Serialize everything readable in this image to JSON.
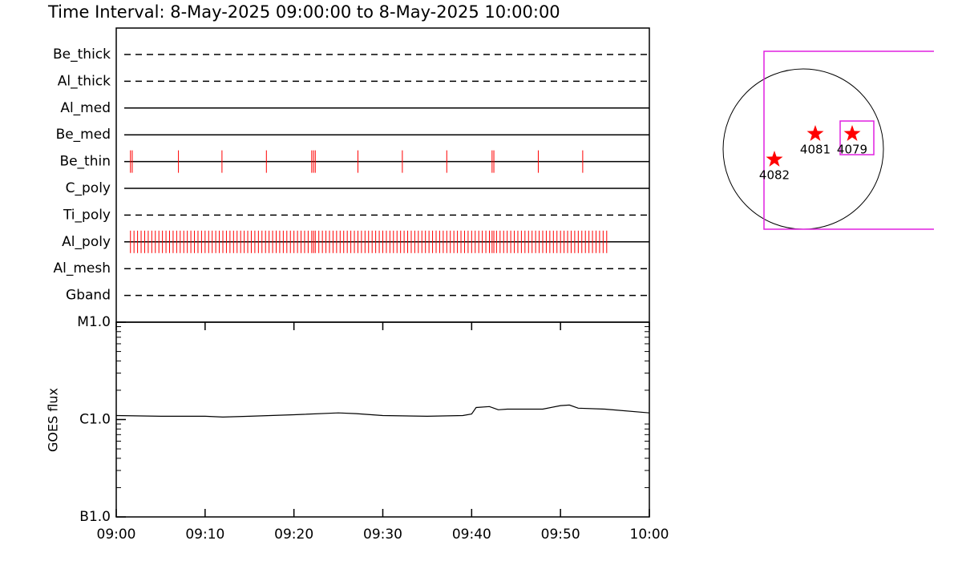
{
  "chart_data": [
    {
      "type": "timeline",
      "title": "Time Interval:  8-May-2025 09:00:00 to  8-May-2025 10:00:00",
      "categories": [
        "Be_thick",
        "Al_thick",
        "Al_med",
        "Be_med",
        "Be_thin",
        "C_poly",
        "Ti_poly",
        "Al_poly",
        "Al_mesh",
        "Gband"
      ],
      "line_styles": [
        "dashed",
        "dashed",
        "solid",
        "solid",
        "solid",
        "solid",
        "dashed",
        "solid",
        "dashed",
        "dashed"
      ],
      "color": "#ff0000",
      "xlim": [
        0,
        60
      ],
      "events": [
        [],
        [],
        [],
        [],
        [
          1.6,
          1.8,
          7.0,
          11.9,
          16.9,
          22.0,
          22.2,
          22.4,
          27.2,
          32.2,
          37.2,
          42.3,
          42.5,
          47.5,
          52.5
        ],
        [],
        [],
        [
          1.6,
          2.0,
          2.4,
          2.8,
          3.2,
          3.6,
          4.0,
          4.4,
          4.8,
          5.2,
          5.6,
          6.0,
          6.4,
          6.8,
          7.2,
          7.6,
          8.0,
          8.4,
          8.8,
          9.2,
          9.6,
          10.0,
          10.4,
          10.8,
          11.2,
          11.6,
          12.0,
          12.4,
          12.8,
          13.2,
          13.6,
          14.0,
          14.4,
          14.8,
          15.2,
          15.6,
          16.0,
          16.4,
          16.8,
          17.2,
          17.6,
          18.0,
          18.4,
          18.8,
          19.2,
          19.6,
          20.0,
          20.4,
          20.8,
          21.2,
          21.6,
          22.0,
          22.2,
          22.4,
          22.8,
          23.2,
          23.6,
          24.0,
          24.4,
          24.8,
          25.2,
          25.6,
          26.0,
          26.4,
          26.8,
          27.2,
          27.6,
          28.0,
          28.4,
          28.8,
          29.2,
          29.6,
          30.0,
          30.4,
          30.8,
          31.2,
          31.6,
          32.0,
          32.4,
          32.8,
          33.2,
          33.6,
          34.0,
          34.4,
          34.8,
          35.2,
          35.6,
          36.0,
          36.4,
          36.8,
          37.2,
          37.6,
          38.0,
          38.4,
          38.8,
          39.2,
          39.6,
          40.0,
          40.4,
          40.8,
          41.2,
          41.6,
          42.0,
          42.3,
          42.5,
          42.8,
          43.2,
          43.6,
          44.0,
          44.4,
          44.8,
          45.2,
          45.6,
          46.0,
          46.4,
          46.8,
          47.2,
          47.6,
          48.0,
          48.4,
          48.8,
          49.2,
          49.6,
          50.0,
          50.4,
          50.8,
          51.2,
          51.6,
          52.0,
          52.4,
          52.8,
          53.2,
          53.6,
          54.0,
          54.4,
          54.8,
          55.2
        ],
        [],
        []
      ]
    },
    {
      "type": "line",
      "y_label": "GOES flux",
      "log_scale": true,
      "color": "#000000",
      "x": [
        0,
        5,
        10,
        12,
        15,
        20,
        25,
        27,
        30,
        35,
        39,
        40,
        40.5,
        42,
        43,
        44,
        48,
        50,
        51,
        52,
        55,
        60
      ],
      "values": [
        1.1e-06,
        1.08e-06,
        1.08e-06,
        1.06e-06,
        1.08e-06,
        1.12e-06,
        1.17e-06,
        1.15e-06,
        1.1e-06,
        1.08e-06,
        1.1e-06,
        1.14e-06,
        1.33e-06,
        1.36e-06,
        1.26e-06,
        1.28e-06,
        1.28e-06,
        1.39e-06,
        1.41e-06,
        1.31e-06,
        1.28e-06,
        1.17e-06
      ],
      "xlim": [
        0,
        60
      ],
      "xticks": [
        {
          "value": 0,
          "label": "09:00"
        },
        {
          "value": 10,
          "label": "09:10"
        },
        {
          "value": 20,
          "label": "09:20"
        },
        {
          "value": 30,
          "label": "09:30"
        },
        {
          "value": 40,
          "label": "09:40"
        },
        {
          "value": 50,
          "label": "09:50"
        },
        {
          "value": 60,
          "label": "10:00"
        }
      ],
      "ylim": [
        1e-07,
        1e-05
      ],
      "yticks": [
        {
          "value": 1e-07,
          "label": "B1.0"
        },
        {
          "value": 1e-06,
          "label": "C1.0"
        },
        {
          "value": 1e-05,
          "label": "M1.0"
        }
      ]
    },
    {
      "type": "map",
      "regions": [
        "4082",
        "4081",
        "4079"
      ],
      "color": "#ff0000"
    }
  ]
}
